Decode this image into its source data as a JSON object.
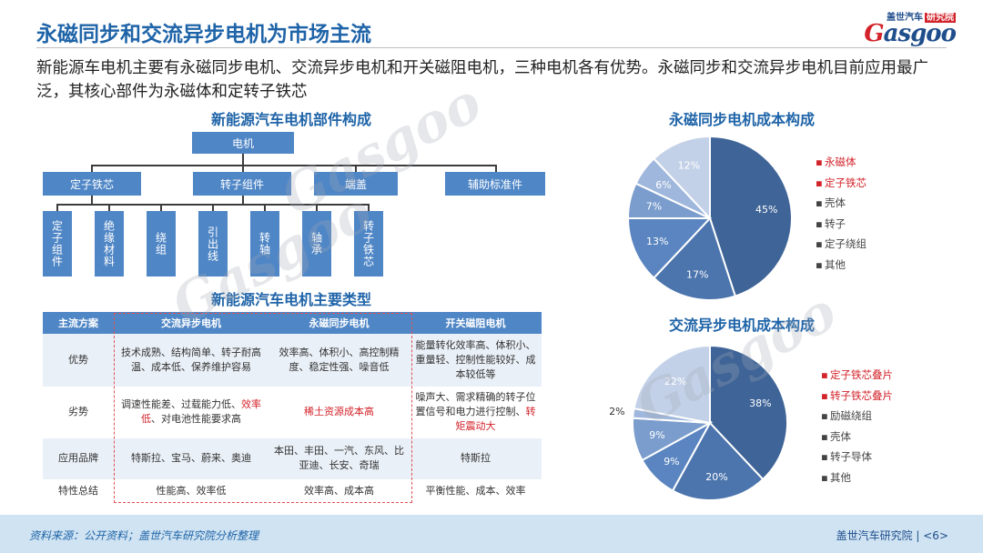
{
  "header": {
    "title": "永磁同步和交流异步电机为市场主流",
    "logo_top": "盖世汽车",
    "logo_badge": "研究院",
    "logo_main_g": "G",
    "logo_main_rest": "asgoo"
  },
  "summary": "新能源车电机主要有永磁同步电机、交流异步电机和开关磁阻电机，三种电机各有优势。永磁同步和交流异步电机目前应用最广泛，其核心部件为永磁体和定转子铁芯",
  "org_chart": {
    "title": "新能源汽车电机部件构成",
    "root": "电机",
    "level2": [
      "定子铁芯",
      "转子组件",
      "端盖",
      "辅助标准件"
    ],
    "level3": [
      "定子组件",
      "绝缘材料",
      "绕组",
      "引出线",
      "转轴",
      "轴承",
      "转子铁芯"
    ]
  },
  "types_table": {
    "title": "新能源汽车电机主要类型",
    "headers": [
      "主流方案",
      "交流异步电机",
      "永磁同步电机",
      "开关磁阻电机"
    ],
    "rows": [
      {
        "label": "优势",
        "ac": "技术成熟、结构简单、转子耐高温、成本低、保养维护容易",
        "pm": "效率高、体积小、高控制精度、稳定性强、噪音低",
        "sr": "能量转化效率高、体积小、重量轻、控制性能较好、成本较低等"
      },
      {
        "label": "劣势",
        "ac_a": "调速性能差、过载能力低、",
        "ac_red": "效率低",
        "ac_b": "、对电池性能要求高",
        "pm_red": "稀土资源成本高",
        "sr_a": "噪声大、需求精确的转子位置信号和电力进行控制、",
        "sr_red": "转矩震动大"
      },
      {
        "label": "应用品牌",
        "ac": "特斯拉、宝马、蔚来、奥迪",
        "pm": "本田、丰田、一汽、东风、比亚迪、长安、奇瑞",
        "sr": "特斯拉"
      },
      {
        "label": "特性总结",
        "ac": "性能高、效率低",
        "pm": "效率高、成本高",
        "sr": "平衡性能、成本、效率"
      }
    ]
  },
  "chart_data": [
    {
      "type": "pie",
      "title": "永磁同步电机成本构成",
      "labels": [
        "永磁体",
        "定子铁芯",
        "壳体",
        "转子",
        "定子绕组",
        "其他"
      ],
      "values": [
        45,
        17,
        13,
        7,
        6,
        12
      ],
      "value_labels": [
        "45%",
        "17%",
        "13%",
        "7%",
        "6%",
        "12%"
      ],
      "colors": [
        "#3f6497",
        "#4c74ad",
        "#5b85c0",
        "#7b9dcd",
        "#9fb7dc",
        "#c3d1e8"
      ],
      "legend_colors": [
        "#d3232a",
        "#d3232a",
        "#444444",
        "#444444",
        "#444444",
        "#444444"
      ],
      "legend_marks": [
        "▪",
        "▪",
        "▪",
        "▪",
        "▪",
        "▪"
      ],
      "legend": "right"
    },
    {
      "type": "pie",
      "title": "交流异步电机成本构成",
      "labels": [
        "定子铁芯叠片",
        "转子铁芯叠片",
        "励磁绕组",
        "壳体",
        "转子导体",
        "其他"
      ],
      "values": [
        38,
        20,
        9,
        9,
        22,
        2
      ],
      "display_order": [
        0,
        1,
        2,
        3,
        5,
        4
      ],
      "value_labels": [
        "38%",
        "20%",
        "9%",
        "9%",
        "22%",
        "2%"
      ],
      "colors": [
        "#3f6497",
        "#4c74ad",
        "#5b85c0",
        "#7b9dcd",
        "#c3d1e8",
        "#9fb7dc"
      ],
      "legend_colors": [
        "#d3232a",
        "#d3232a",
        "#444444",
        "#444444",
        "#444444",
        "#444444"
      ],
      "legend_marks": [
        "▪",
        "▪",
        "▪",
        "▪",
        "▪",
        "▪"
      ],
      "legend": "right"
    }
  ],
  "footer": {
    "source": "资料来源：公开资料；盖世汽车研究院分析整理",
    "right": "盖世汽车研究院 | <6>"
  }
}
